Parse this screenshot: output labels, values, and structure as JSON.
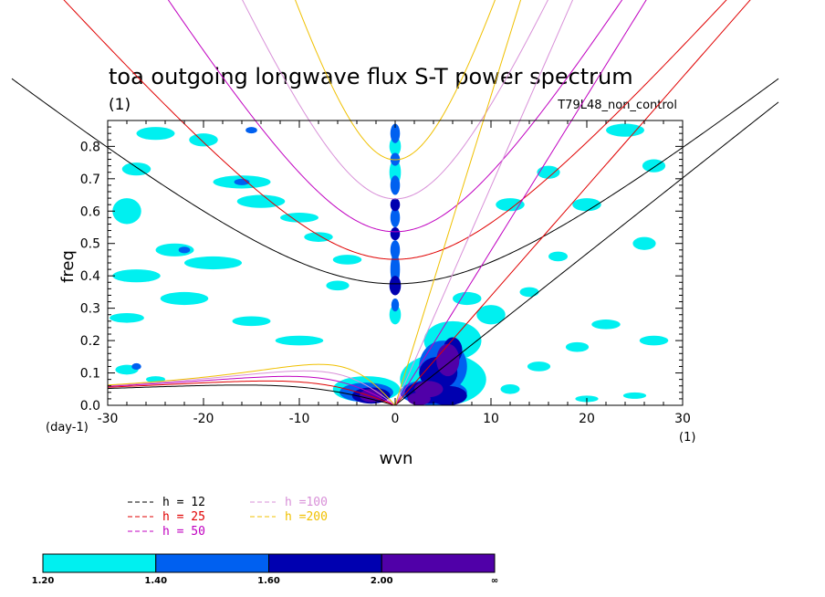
{
  "chart_data": {
    "type": "contour",
    "title": "toa outgoing longwave flux S-T power spectrum",
    "title_unit": "(1)",
    "dataset_label": "T79L48_non_control",
    "xlabel": "wvn",
    "ylabel": "freq",
    "x_unit_label": "(1)",
    "y_unit_label": "(day-1)",
    "xlim": [
      -30,
      30
    ],
    "ylim": [
      0,
      0.88
    ],
    "x_ticks": [
      -30,
      -20,
      -10,
      0,
      10,
      20,
      30
    ],
    "x_tick_labels": [
      "-30",
      "-20",
      "-10",
      "0",
      "10",
      "20",
      "30"
    ],
    "y_ticks": [
      0,
      0.1,
      0.2,
      0.3,
      0.4,
      0.5,
      0.6,
      0.7,
      0.8
    ],
    "y_tick_labels": [
      "0.0",
      "0.1",
      "0.2",
      "0.3",
      "0.4",
      "0.5",
      "0.6",
      "0.7",
      "0.8"
    ],
    "dispersion_curves": [
      {
        "label": "h = 12",
        "h": 12,
        "color": "#000000"
      },
      {
        "label": "h = 25",
        "h": 25,
        "color": "#e00000"
      },
      {
        "label": "h = 50",
        "h": 50,
        "color": "#c000c0"
      },
      {
        "label": "h =100",
        "h": 100,
        "color": "#d890d8"
      },
      {
        "label": "h =200",
        "h": 200,
        "color": "#f0c000"
      }
    ],
    "colorbar": {
      "levels": [
        "1.20",
        "1.40",
        "1.60",
        "2.00",
        "∞"
      ],
      "colors": [
        "#00f0f0",
        "#0060f0",
        "#0000b0",
        "#5000a8"
      ]
    },
    "contour_regions": [
      {
        "level": 2,
        "x": 0,
        "y": 0.37,
        "rx": 0.6,
        "ry": 0.03
      },
      {
        "level": 2,
        "x": 0,
        "y": 0.53,
        "rx": 0.5,
        "ry": 0.02
      },
      {
        "level": 2,
        "x": 0,
        "y": 0.62,
        "rx": 0.5,
        "ry": 0.02
      },
      {
        "level": 1,
        "x": 0,
        "y": 0.31,
        "rx": 0.4,
        "ry": 0.02
      },
      {
        "level": 1,
        "x": 0,
        "y": 0.42,
        "rx": 0.5,
        "ry": 0.05
      },
      {
        "level": 1,
        "x": 0,
        "y": 0.48,
        "rx": 0.5,
        "ry": 0.03
      },
      {
        "level": 1,
        "x": 0,
        "y": 0.58,
        "rx": 0.5,
        "ry": 0.03
      },
      {
        "level": 1,
        "x": 0,
        "y": 0.68,
        "rx": 0.5,
        "ry": 0.03
      },
      {
        "level": 1,
        "x": 0,
        "y": 0.76,
        "rx": 0.5,
        "ry": 0.02
      },
      {
        "level": 1,
        "x": 0,
        "y": 0.84,
        "rx": 0.5,
        "ry": 0.03
      },
      {
        "level": 0,
        "x": 0,
        "y": 0.28,
        "rx": 0.6,
        "ry": 0.03
      },
      {
        "level": 0,
        "x": 0,
        "y": 0.72,
        "rx": 0.6,
        "ry": 0.04
      },
      {
        "level": 0,
        "x": 0,
        "y": 0.8,
        "rx": 0.6,
        "ry": 0.03
      },
      {
        "level": 3,
        "x": 5.5,
        "y": 0.14,
        "rx": 1.2,
        "ry": 0.05
      },
      {
        "level": 3,
        "x": 3.5,
        "y": 0.05,
        "rx": 1.5,
        "ry": 0.025
      },
      {
        "level": 3,
        "x": 2.5,
        "y": 0.02,
        "rx": 1.2,
        "ry": 0.02
      },
      {
        "level": 2,
        "x": 6,
        "y": 0.17,
        "rx": 1.0,
        "ry": 0.04
      },
      {
        "level": 2,
        "x": 4.5,
        "y": 0.1,
        "rx": 2.0,
        "ry": 0.05
      },
      {
        "level": 2,
        "x": 3.5,
        "y": 0.04,
        "rx": 2.5,
        "ry": 0.035
      },
      {
        "level": 2,
        "x": 5.5,
        "y": 0.03,
        "rx": 2.0,
        "ry": 0.03
      },
      {
        "level": 1,
        "x": 5,
        "y": 0.12,
        "rx": 2.5,
        "ry": 0.08
      },
      {
        "level": 1,
        "x": 4,
        "y": 0.04,
        "rx": 3.5,
        "ry": 0.04
      },
      {
        "level": 0,
        "x": 6,
        "y": 0.2,
        "rx": 3.0,
        "ry": 0.06
      },
      {
        "level": 0,
        "x": 5,
        "y": 0.08,
        "rx": 4.5,
        "ry": 0.08
      },
      {
        "level": 0,
        "x": 7.5,
        "y": 0.33,
        "rx": 1.5,
        "ry": 0.02
      },
      {
        "level": 3,
        "x": -2.5,
        "y": 0.03,
        "rx": 1.2,
        "ry": 0.02
      },
      {
        "level": 2,
        "x": -2.5,
        "y": 0.03,
        "rx": 2.0,
        "ry": 0.025
      },
      {
        "level": 1,
        "x": -3,
        "y": 0.04,
        "rx": 2.8,
        "ry": 0.03
      },
      {
        "level": 0,
        "x": -3,
        "y": 0.05,
        "rx": 3.5,
        "ry": 0.04
      },
      {
        "level": 0,
        "x": -28,
        "y": 0.6,
        "rx": 1.5,
        "ry": 0.04
      },
      {
        "level": 0,
        "x": -27,
        "y": 0.73,
        "rx": 1.5,
        "ry": 0.02
      },
      {
        "level": 0,
        "x": -25,
        "y": 0.84,
        "rx": 2.0,
        "ry": 0.02
      },
      {
        "level": 0,
        "x": -20,
        "y": 0.82,
        "rx": 1.5,
        "ry": 0.02
      },
      {
        "level": 0,
        "x": -16,
        "y": 0.69,
        "rx": 3.0,
        "ry": 0.02
      },
      {
        "level": 0,
        "x": -14,
        "y": 0.63,
        "rx": 2.5,
        "ry": 0.02
      },
      {
        "level": 0,
        "x": -10,
        "y": 0.58,
        "rx": 2.0,
        "ry": 0.015
      },
      {
        "level": 0,
        "x": -23,
        "y": 0.48,
        "rx": 2.0,
        "ry": 0.02
      },
      {
        "level": 0,
        "x": -19,
        "y": 0.44,
        "rx": 3.0,
        "ry": 0.02
      },
      {
        "level": 0,
        "x": -27,
        "y": 0.4,
        "rx": 2.5,
        "ry": 0.02
      },
      {
        "level": 0,
        "x": -22,
        "y": 0.33,
        "rx": 2.5,
        "ry": 0.02
      },
      {
        "level": 0,
        "x": -28,
        "y": 0.27,
        "rx": 1.8,
        "ry": 0.015
      },
      {
        "level": 0,
        "x": -15,
        "y": 0.26,
        "rx": 2.0,
        "ry": 0.015
      },
      {
        "level": 0,
        "x": -10,
        "y": 0.2,
        "rx": 2.5,
        "ry": 0.015
      },
      {
        "level": 0,
        "x": -28,
        "y": 0.11,
        "rx": 1.2,
        "ry": 0.015
      },
      {
        "level": 0,
        "x": -25,
        "y": 0.08,
        "rx": 1.0,
        "ry": 0.01
      },
      {
        "level": 0,
        "x": -8,
        "y": 0.52,
        "rx": 1.5,
        "ry": 0.015
      },
      {
        "level": 0,
        "x": -5,
        "y": 0.45,
        "rx": 1.5,
        "ry": 0.015
      },
      {
        "level": 0,
        "x": -6,
        "y": 0.37,
        "rx": 1.2,
        "ry": 0.015
      },
      {
        "level": 1,
        "x": -16,
        "y": 0.69,
        "rx": 0.8,
        "ry": 0.01
      },
      {
        "level": 1,
        "x": -27,
        "y": 0.12,
        "rx": 0.5,
        "ry": 0.01
      },
      {
        "level": 1,
        "x": -22,
        "y": 0.48,
        "rx": 0.6,
        "ry": 0.01
      },
      {
        "level": 1,
        "x": -15,
        "y": 0.85,
        "rx": 0.6,
        "ry": 0.01
      },
      {
        "level": 0,
        "x": 10,
        "y": 0.28,
        "rx": 1.5,
        "ry": 0.03
      },
      {
        "level": 0,
        "x": 12,
        "y": 0.62,
        "rx": 1.5,
        "ry": 0.02
      },
      {
        "level": 0,
        "x": 16,
        "y": 0.72,
        "rx": 1.2,
        "ry": 0.02
      },
      {
        "level": 0,
        "x": 20,
        "y": 0.62,
        "rx": 1.5,
        "ry": 0.02
      },
      {
        "level": 0,
        "x": 24,
        "y": 0.85,
        "rx": 2.0,
        "ry": 0.02
      },
      {
        "level": 0,
        "x": 27,
        "y": 0.74,
        "rx": 1.2,
        "ry": 0.02
      },
      {
        "level": 0,
        "x": 26,
        "y": 0.5,
        "rx": 1.2,
        "ry": 0.02
      },
      {
        "level": 0,
        "x": 22,
        "y": 0.25,
        "rx": 1.5,
        "ry": 0.015
      },
      {
        "level": 0,
        "x": 27,
        "y": 0.2,
        "rx": 1.5,
        "ry": 0.015
      },
      {
        "level": 0,
        "x": 19,
        "y": 0.18,
        "rx": 1.2,
        "ry": 0.015
      },
      {
        "level": 0,
        "x": 20,
        "y": 0.02,
        "rx": 1.2,
        "ry": 0.01
      },
      {
        "level": 0,
        "x": 25,
        "y": 0.03,
        "rx": 1.2,
        "ry": 0.01
      },
      {
        "level": 0,
        "x": 14,
        "y": 0.35,
        "rx": 1.0,
        "ry": 0.015
      },
      {
        "level": 0,
        "x": 17,
        "y": 0.46,
        "rx": 1.0,
        "ry": 0.015
      },
      {
        "level": 0,
        "x": 12,
        "y": 0.05,
        "rx": 1.0,
        "ry": 0.015
      },
      {
        "level": 0,
        "x": 15,
        "y": 0.12,
        "rx": 1.2,
        "ry": 0.015
      }
    ]
  }
}
